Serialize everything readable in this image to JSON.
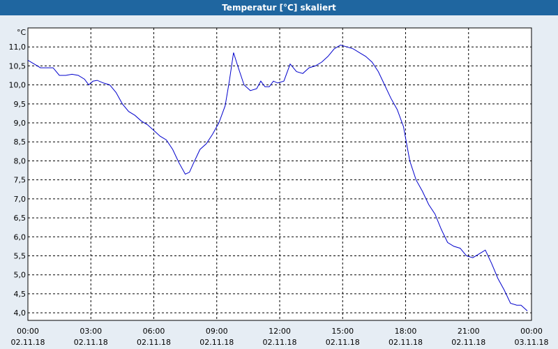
{
  "window": {
    "title": "Temperatur [°C] skaliert"
  },
  "chart_data": {
    "type": "line",
    "title": "Temperatur [°C] skaliert",
    "ylabel": "°C",
    "xlabel": "",
    "ylim": [
      3.8,
      11.5
    ],
    "xlim": [
      0,
      24
    ],
    "grid": true,
    "y_ticks": [
      "11,0",
      "10,5",
      "10,0",
      "9,5",
      "9,0",
      "8,5",
      "8,0",
      "7,5",
      "7,0",
      "6,5",
      "6,0",
      "5,5",
      "5,0",
      "4,5",
      "4,0"
    ],
    "y_tick_values": [
      11.0,
      10.5,
      10.0,
      9.5,
      9.0,
      8.5,
      8.0,
      7.5,
      7.0,
      6.5,
      6.0,
      5.5,
      5.0,
      4.5,
      4.0
    ],
    "x_ticks": [
      {
        "time": "00:00",
        "date": "02.11.18"
      },
      {
        "time": "03:00",
        "date": "02.11.18"
      },
      {
        "time": "06:00",
        "date": "02.11.18"
      },
      {
        "time": "09:00",
        "date": "02.11.18"
      },
      {
        "time": "12:00",
        "date": "02.11.18"
      },
      {
        "time": "15:00",
        "date": "02.11.18"
      },
      {
        "time": "18:00",
        "date": "02.11.18"
      },
      {
        "time": "21:00",
        "date": "02.11.18"
      },
      {
        "time": "00:00",
        "date": "03.11.18"
      }
    ],
    "x_tick_hours": [
      0,
      3,
      6,
      9,
      12,
      15,
      18,
      21,
      24
    ],
    "series": [
      {
        "color": "#0000cc",
        "x": [
          0.0,
          0.3,
          0.6,
          0.9,
          1.2,
          1.5,
          1.8,
          2.1,
          2.4,
          2.7,
          2.9,
          3.1,
          3.3,
          3.6,
          3.9,
          4.2,
          4.5,
          4.8,
          5.1,
          5.4,
          5.7,
          6.0,
          6.3,
          6.6,
          6.9,
          7.2,
          7.5,
          7.7,
          7.9,
          8.2,
          8.5,
          8.8,
          9.1,
          9.4,
          9.6,
          9.8,
          10.0,
          10.3,
          10.6,
          10.9,
          11.1,
          11.3,
          11.5,
          11.7,
          11.9,
          12.2,
          12.5,
          12.8,
          13.1,
          13.4,
          13.7,
          14.0,
          14.3,
          14.6,
          14.9,
          15.2,
          15.5,
          15.8,
          16.1,
          16.4,
          16.7,
          17.0,
          17.3,
          17.6,
          17.9,
          18.2,
          18.5,
          18.8,
          19.1,
          19.4,
          19.7,
          20.0,
          20.3,
          20.6,
          20.9,
          21.2,
          21.5,
          21.8,
          22.1,
          22.4,
          22.7,
          23.0,
          23.3,
          23.5,
          23.8
        ],
        "y": [
          10.65,
          10.55,
          10.45,
          10.45,
          10.45,
          10.25,
          10.25,
          10.28,
          10.25,
          10.15,
          10.0,
          10.1,
          10.12,
          10.05,
          10.0,
          9.8,
          9.5,
          9.3,
          9.2,
          9.05,
          8.95,
          8.8,
          8.65,
          8.55,
          8.3,
          7.95,
          7.65,
          7.7,
          7.95,
          8.3,
          8.45,
          8.7,
          9.0,
          9.45,
          10.1,
          10.85,
          10.5,
          10.0,
          9.85,
          9.9,
          10.1,
          9.95,
          9.95,
          10.1,
          10.05,
          10.1,
          10.55,
          10.35,
          10.3,
          10.45,
          10.5,
          10.6,
          10.75,
          10.95,
          11.05,
          11.0,
          10.95,
          10.85,
          10.75,
          10.6,
          10.35,
          10.0,
          9.65,
          9.35,
          8.9,
          8.0,
          7.5,
          7.2,
          6.85,
          6.6,
          6.2,
          5.85,
          5.75,
          5.7,
          5.5,
          5.45,
          5.55,
          5.65,
          5.3,
          4.9,
          4.6,
          4.25,
          4.2,
          4.2,
          4.05
        ]
      }
    ]
  }
}
